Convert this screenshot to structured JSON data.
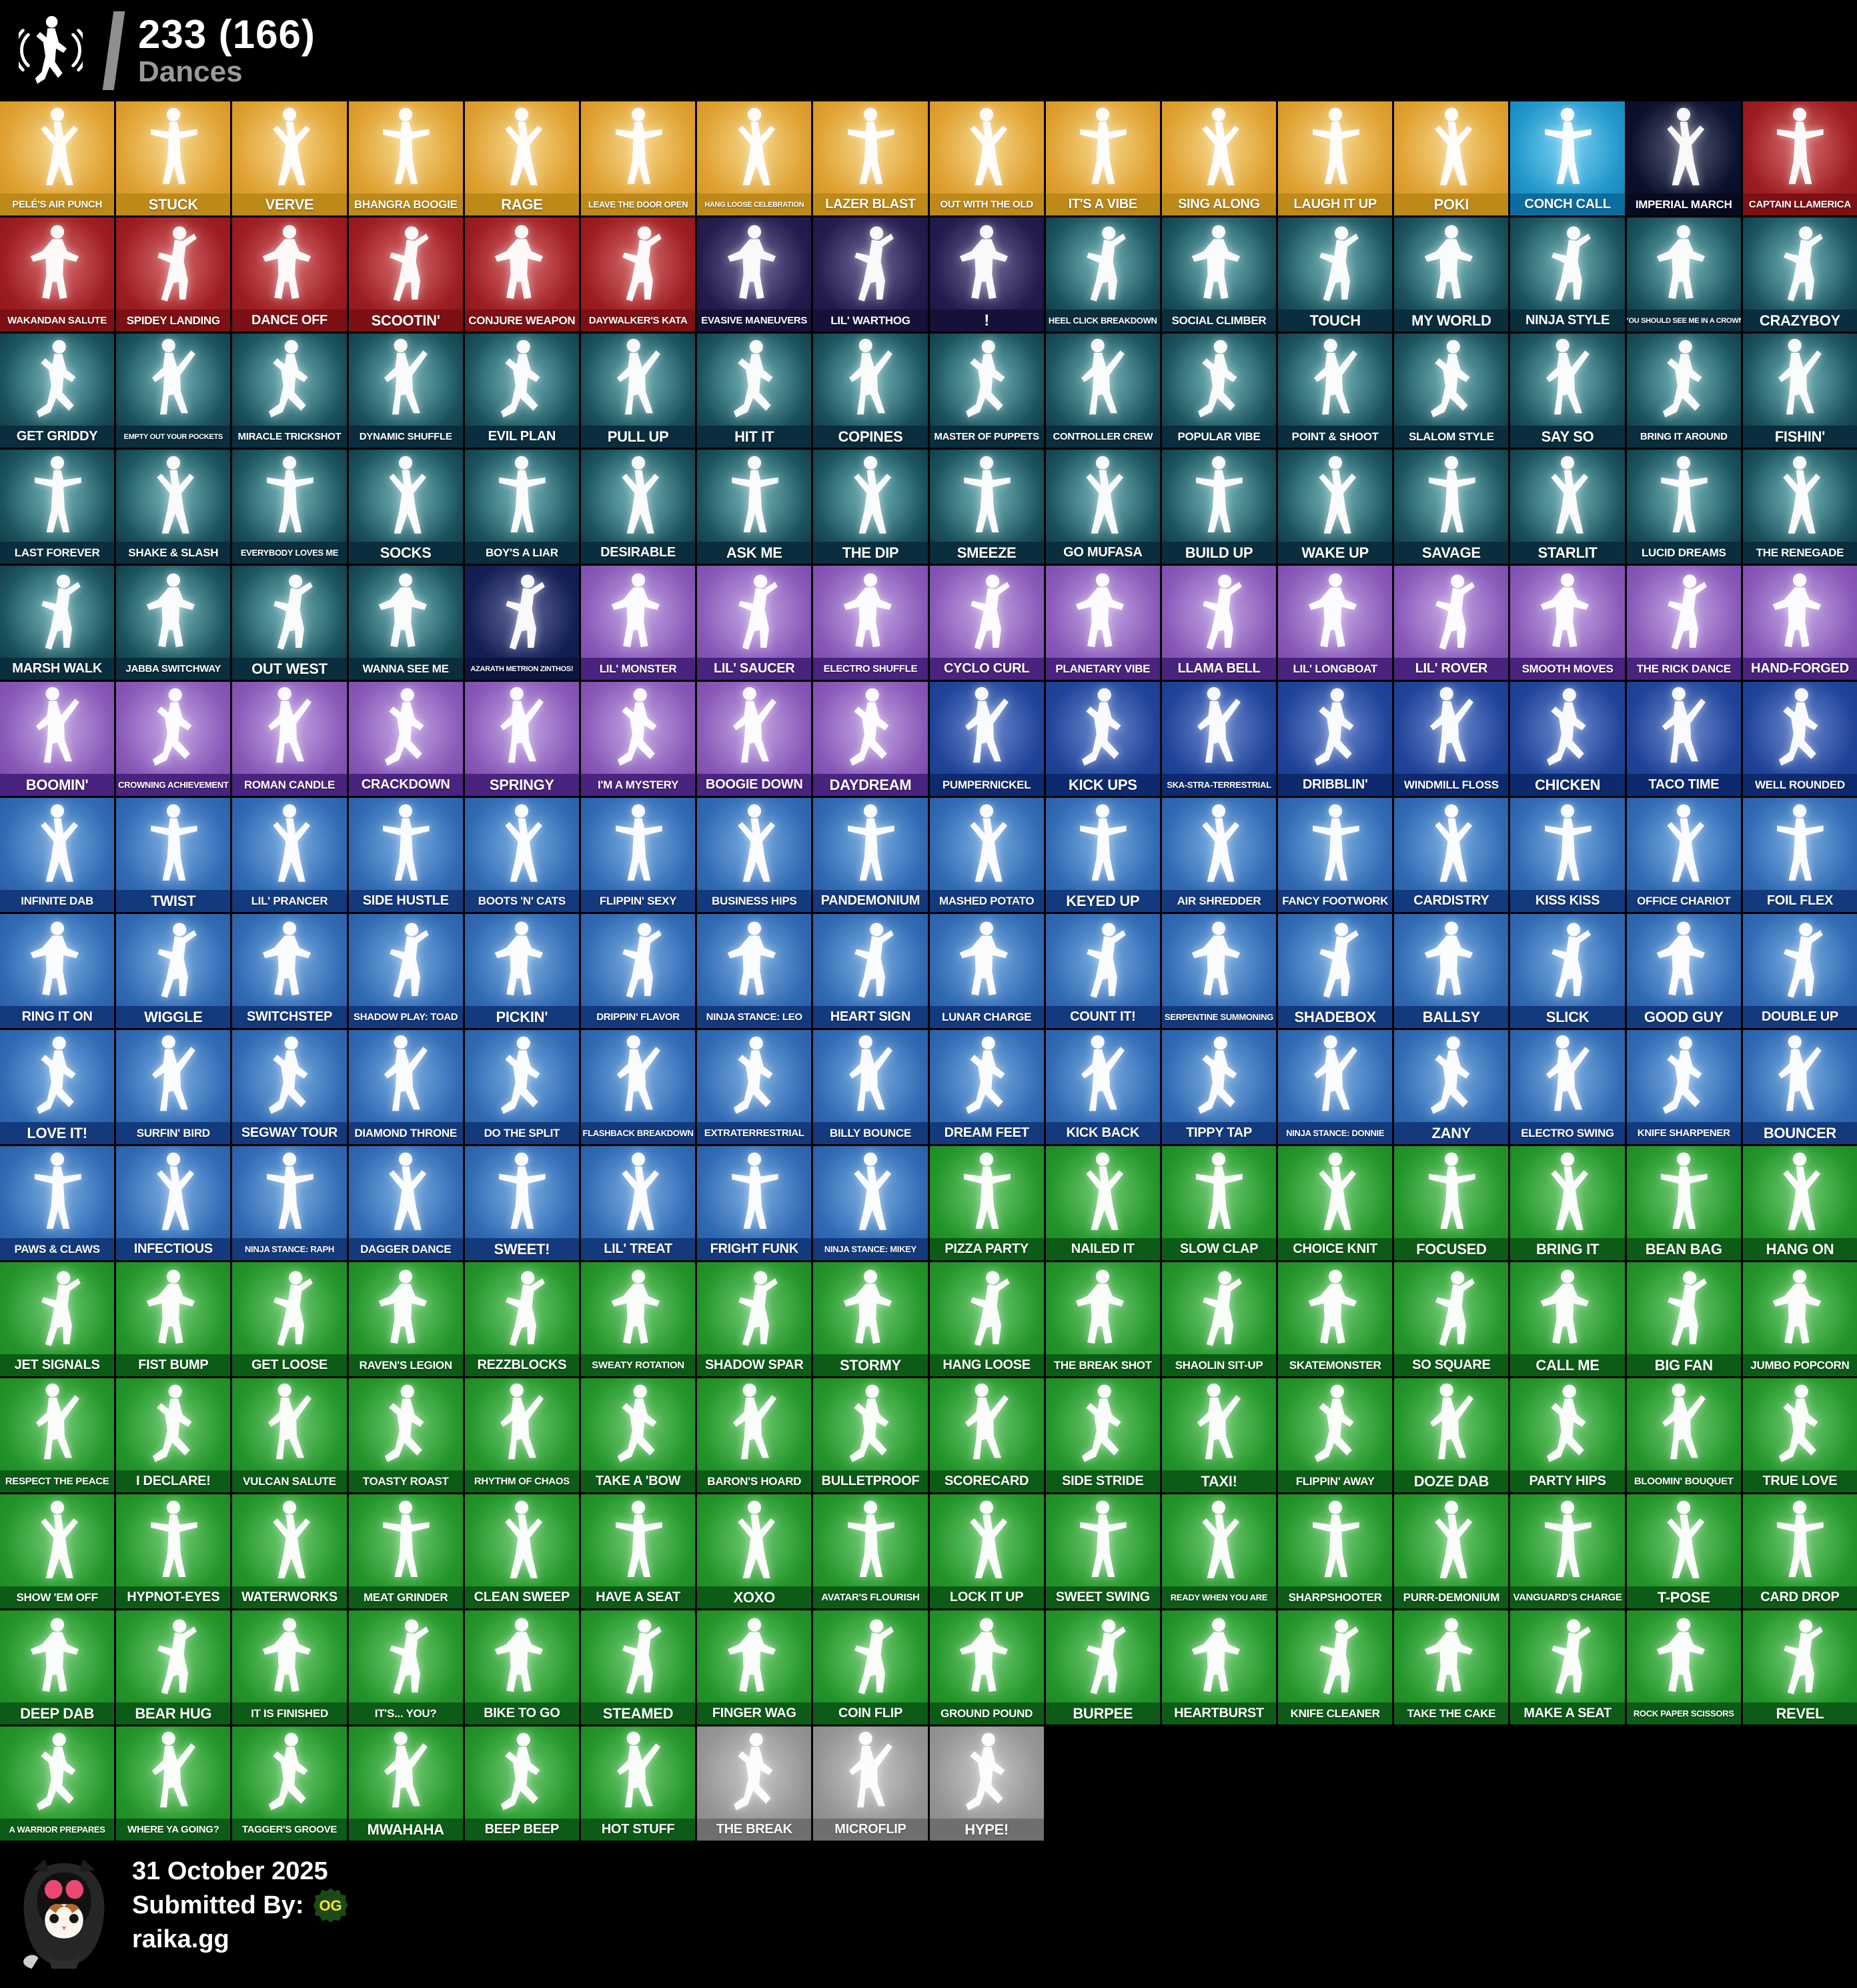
{
  "header": {
    "count": "233 (166)",
    "label": "Dances"
  },
  "footer": {
    "date": "31 October 2025",
    "submitted_by_label": "Submitted By:",
    "badge": "OG",
    "site": "raika.gg"
  },
  "palette": {
    "gold": {
      "bg1": "#f0bf4e",
      "bg2": "#d89527",
      "band": "#bd8a1a"
    },
    "red": {
      "bg1": "#c12b2e",
      "bg2": "#8f181d",
      "band": "#7c1014"
    },
    "darkpurple": {
      "bg1": "#342667",
      "bg2": "#1f1745",
      "band": "#171038"
    },
    "teal": {
      "bg1": "#379097",
      "bg2": "#113d48",
      "band": "#0a2e3d"
    },
    "navy2": {
      "bg1": "#1d2a6e",
      "bg2": "#101a4a",
      "band": "#0c1440"
    },
    "epic": {
      "bg1": "#a87cd4",
      "bg2": "#7d4cae",
      "band": "#49237e"
    },
    "rare": {
      "bg1": "#3f87d0",
      "bg2": "#2a5fa8",
      "band": "#143a7e"
    },
    "raredark": {
      "bg1": "#2c55b5",
      "bg2": "#1b3d8e",
      "band": "#0e2a6e"
    },
    "uncommon": {
      "bg1": "#31b135",
      "bg2": "#1e8a25",
      "band": "#0c5c17"
    },
    "gray": {
      "bg1": "#ababab",
      "bg2": "#8c8c8c",
      "band": "#6f6f6f"
    },
    "iconblue": {
      "bg1": "#3cbbe9",
      "bg2": "#1787bd",
      "band": "#0c6c9e"
    },
    "imperial": {
      "bg1": "#11173d",
      "bg2": "#090d26",
      "band": "#070b20"
    }
  },
  "rows": [
    {
      "default": "gold",
      "tiles": [
        "PELÉ'S AIR PUNCH",
        "STUCK",
        "VERVE",
        "BHANGRA BOOGIE",
        "RAGE",
        "LEAVE THE DOOR OPEN",
        "HANG LOOSE CELEBRATION",
        "LAZER BLAST",
        "OUT WITH THE OLD",
        "IT'S A VIBE",
        "SING ALONG",
        "LAUGH IT UP",
        "POKI",
        {
          "name": "CONCH CALL",
          "rarity": "iconblue"
        },
        {
          "name": "IMPERIAL MARCH",
          "rarity": "imperial"
        },
        {
          "name": "CAPTAIN LLAMERICA",
          "rarity": "red"
        }
      ]
    },
    {
      "default": "red",
      "tiles": [
        "WAKANDAN SALUTE",
        "SPIDEY LANDING",
        "DANCE OFF",
        "SCOOTIN'",
        "CONJURE WEAPON",
        "DAYWALKER'S KATA",
        {
          "name": "EVASIVE MANEUVERS",
          "rarity": "darkpurple"
        },
        {
          "name": "LIL' WARTHOG",
          "rarity": "darkpurple"
        },
        {
          "name": "!",
          "rarity": "darkpurple"
        },
        {
          "name": "HEEL CLICK BREAKDOWN",
          "rarity": "teal"
        },
        {
          "name": "SOCIAL CLIMBER",
          "rarity": "teal"
        },
        {
          "name": "TOUCH",
          "rarity": "teal"
        },
        {
          "name": "MY WORLD",
          "rarity": "teal"
        },
        {
          "name": "NINJA STYLE",
          "rarity": "teal"
        },
        {
          "name": "YOU SHOULD SEE ME IN A CROWN",
          "rarity": "teal"
        },
        {
          "name": "CRAZYBOY",
          "rarity": "teal"
        }
      ]
    },
    {
      "default": "teal",
      "tiles": [
        "GET GRIDDY",
        "EMPTY OUT YOUR POCKETS",
        "MIRACLE TRICKSHOT",
        "DYNAMIC SHUFFLE",
        "EVIL PLAN",
        "PULL UP",
        "HIT IT",
        "COPINES",
        "MASTER OF PUPPETS",
        "CONTROLLER CREW",
        "POPULAR VIBE",
        "POINT & SHOOT",
        "SLALOM STYLE",
        "SAY SO",
        "BRING IT AROUND",
        "FISHIN'"
      ]
    },
    {
      "default": "teal",
      "tiles": [
        "LAST FOREVER",
        "SHAKE & SLASH",
        "EVERYBODY LOVES ME",
        "SOCKS",
        "BOY'S A LIAR",
        "DESIRABLE",
        "ASK ME",
        "THE DIP",
        "SMEEZE",
        "GO MUFASA",
        "BUILD UP",
        "WAKE UP",
        "SAVAGE",
        "STARLIT",
        "LUCID DREAMS",
        "THE RENEGADE"
      ]
    },
    {
      "default": "epic",
      "tiles": [
        {
          "name": "MARSH WALK",
          "rarity": "teal"
        },
        {
          "name": "JABBA SWITCHWAY",
          "rarity": "teal"
        },
        {
          "name": "OUT WEST",
          "rarity": "teal"
        },
        {
          "name": "WANNA SEE ME",
          "rarity": "teal"
        },
        {
          "name": "AZARATH METRION ZINTHOS!",
          "rarity": "navy2"
        },
        "LIL' MONSTER",
        "LIL' SAUCER",
        "ELECTRO SHUFFLE",
        "CYCLO CURL",
        "PLANETARY VIBE",
        "LLAMA BELL",
        "LIL' LONGBOAT",
        "LIL' ROVER",
        "SMOOTH MOVES",
        "THE RICK DANCE",
        "HAND-FORGED"
      ]
    },
    {
      "default": "epic",
      "tiles": [
        "BOOMIN'",
        "CROWNING ACHIEVEMENT",
        "ROMAN CANDLE",
        "CRACKDOWN",
        "SPRINGY",
        "I'M A MYSTERY",
        "BOOGIE DOWN",
        "DAYDREAM",
        {
          "name": "PUMPERNICKEL",
          "rarity": "raredark"
        },
        {
          "name": "KICK UPS",
          "rarity": "raredark"
        },
        {
          "name": "SKA-STRA-TERRESTRIAL",
          "rarity": "raredark"
        },
        {
          "name": "DRIBBLIN'",
          "rarity": "raredark"
        },
        {
          "name": "WINDMILL FLOSS",
          "rarity": "raredark"
        },
        {
          "name": "CHICKEN",
          "rarity": "raredark"
        },
        {
          "name": "TACO TIME",
          "rarity": "raredark"
        },
        {
          "name": "WELL ROUNDED",
          "rarity": "raredark"
        }
      ]
    },
    {
      "default": "rare",
      "tiles": [
        "INFINITE DAB",
        "TWIST",
        "LIL' PRANCER",
        "SIDE HUSTLE",
        "BOOTS 'N' CATS",
        "FLIPPIN' SEXY",
        "BUSINESS HIPS",
        "PANDEMONIUM",
        "MASHED POTATO",
        "KEYED UP",
        "AIR SHREDDER",
        "FANCY FOOTWORK",
        "CARDISTRY",
        "KISS KISS",
        "OFFICE CHARIOT",
        "FOIL FLEX"
      ]
    },
    {
      "default": "rare",
      "tiles": [
        "RING IT ON",
        "WIGGLE",
        "SWITCHSTEP",
        "SHADOW PLAY: TOAD",
        "PICKIN'",
        "DRIPPIN' FLAVOR",
        "NINJA STANCE: LEO",
        "HEART SIGN",
        "LUNAR CHARGE",
        "COUNT IT!",
        "SERPENTINE SUMMONING",
        "SHADEBOX",
        "BALLSY",
        "SLICK",
        "GOOD GUY",
        "DOUBLE UP"
      ]
    },
    {
      "default": "rare",
      "tiles": [
        "LOVE IT!",
        "SURFIN' BIRD",
        "SEGWAY TOUR",
        "DIAMOND THRONE",
        "DO THE SPLIT",
        "FLASHBACK BREAKDOWN",
        "EXTRATERRESTRIAL",
        "BILLY BOUNCE",
        "DREAM FEET",
        "KICK BACK",
        "TIPPY TAP",
        "NINJA STANCE: DONNIE",
        "ZANY",
        "ELECTRO SWING",
        "KNIFE SHARPENER",
        "BOUNCER"
      ]
    },
    {
      "default": "rare",
      "tiles": [
        "PAWS & CLAWS",
        "INFECTIOUS",
        "NINJA STANCE: RAPH",
        "DAGGER DANCE",
        "SWEET!",
        "LIL' TREAT",
        "FRIGHT FUNK",
        "NINJA STANCE: MIKEY",
        {
          "name": "PIZZA PARTY",
          "rarity": "uncommon"
        },
        {
          "name": "NAILED IT",
          "rarity": "uncommon"
        },
        {
          "name": "SLOW CLAP",
          "rarity": "uncommon"
        },
        {
          "name": "CHOICE KNIT",
          "rarity": "uncommon"
        },
        {
          "name": "FOCUSED",
          "rarity": "uncommon"
        },
        {
          "name": "BRING IT",
          "rarity": "uncommon"
        },
        {
          "name": "BEAN BAG",
          "rarity": "uncommon"
        },
        {
          "name": "HANG ON",
          "rarity": "uncommon"
        }
      ]
    },
    {
      "default": "uncommon",
      "tiles": [
        "JET SIGNALS",
        "FIST BUMP",
        "GET LOOSE",
        "RAVEN'S LEGION",
        "REZZBLOCKS",
        "SWEATY ROTATION",
        "SHADOW SPAR",
        "STORMY",
        "HANG LOOSE",
        "THE BREAK SHOT",
        "SHAOLIN SIT-UP",
        "SKATEMONSTER",
        "SO SQUARE",
        "CALL ME",
        "BIG FAN",
        "JUMBO POPCORN"
      ]
    },
    {
      "default": "uncommon",
      "tiles": [
        "RESPECT THE PEACE",
        "I DECLARE!",
        "VULCAN SALUTE",
        "TOASTY ROAST",
        "RHYTHM OF CHAOS",
        "TAKE A 'BOW",
        "BARON'S HOARD",
        "BULLETPROOF",
        "SCORECARD",
        "SIDE STRIDE",
        "TAXI!",
        "FLIPPIN' AWAY",
        "DOZE DAB",
        "PARTY HIPS",
        "BLOOMIN' BOUQUET",
        "TRUE LOVE"
      ]
    },
    {
      "default": "uncommon",
      "tiles": [
        "SHOW 'EM OFF",
        "HYPNOT-EYES",
        "WATERWORKS",
        "MEAT GRINDER",
        "CLEAN SWEEP",
        "HAVE A SEAT",
        "XOXO",
        "AVATAR'S FLOURISH",
        "LOCK IT UP",
        "SWEET SWING",
        "READY WHEN YOU ARE",
        "SHARPSHOOTER",
        "PURR-DEMONIUM",
        "VANGUARD'S CHARGE",
        "T-POSE",
        "CARD DROP"
      ]
    },
    {
      "default": "uncommon",
      "tiles": [
        "DEEP DAB",
        "BEAR HUG",
        "IT IS FINISHED",
        "IT'S... YOU?",
        "BIKE TO GO",
        "STEAMED",
        "FINGER WAG",
        "COIN FLIP",
        "GROUND POUND",
        "BURPEE",
        "HEARTBURST",
        "KNIFE CLEANER",
        "TAKE THE CAKE",
        "MAKE A SEAT",
        "ROCK PAPER SCISSORS",
        "REVEL"
      ]
    },
    {
      "default": "uncommon",
      "tiles": [
        "A WARRIOR PREPARES",
        "WHERE YA GOING?",
        "TAGGER'S GROOVE",
        "MWAHAHA",
        "BEEP BEEP",
        "HOT STUFF",
        {
          "name": "THE BREAK",
          "rarity": "gray"
        },
        {
          "name": "MICROFLIP",
          "rarity": "gray"
        },
        {
          "name": "HYPE!",
          "rarity": "gray"
        }
      ]
    }
  ]
}
